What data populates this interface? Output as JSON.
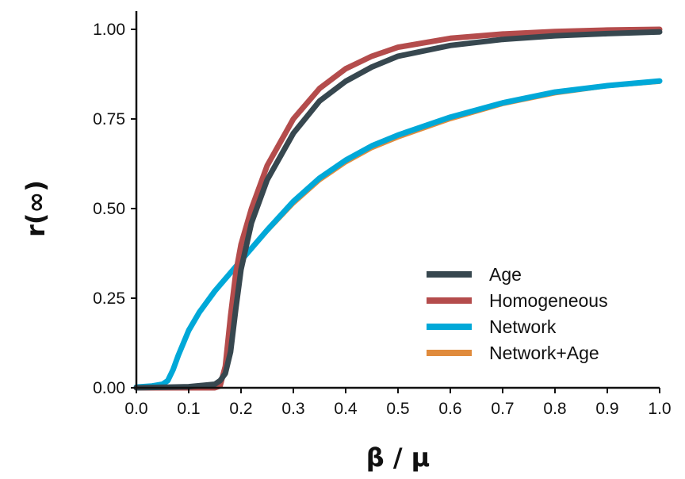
{
  "chart_data": {
    "type": "line",
    "xlabel": "β / μ",
    "ylabel": "r(∞)",
    "xlim": [
      0.0,
      1.0
    ],
    "ylim": [
      0.0,
      1.0
    ],
    "xticks": [
      "0.0",
      "0.1",
      "0.2",
      "0.3",
      "0.4",
      "0.5",
      "0.6",
      "0.7",
      "0.8",
      "0.9",
      "1.0"
    ],
    "yticks": [
      "0.00",
      "0.25",
      "0.50",
      "0.75",
      "1.00"
    ],
    "grid": false,
    "legend_position": "lower-right",
    "series": [
      {
        "name": "Age",
        "color": "#37474f",
        "x": [
          0.0,
          0.1,
          0.15,
          0.16,
          0.17,
          0.18,
          0.19,
          0.2,
          0.22,
          0.25,
          0.3,
          0.35,
          0.4,
          0.45,
          0.5,
          0.6,
          0.7,
          0.8,
          0.9,
          1.0
        ],
        "y": [
          0.0,
          0.003,
          0.01,
          0.02,
          0.04,
          0.1,
          0.22,
          0.33,
          0.46,
          0.58,
          0.71,
          0.8,
          0.855,
          0.895,
          0.925,
          0.955,
          0.972,
          0.982,
          0.988,
          0.993
        ]
      },
      {
        "name": "Homogeneous",
        "color": "#b44c4c",
        "x": [
          0.0,
          0.1,
          0.15,
          0.16,
          0.17,
          0.18,
          0.19,
          0.2,
          0.22,
          0.25,
          0.3,
          0.35,
          0.4,
          0.45,
          0.5,
          0.6,
          0.7,
          0.8,
          0.9,
          1.0
        ],
        "y": [
          0.0,
          0.0,
          0.0,
          0.005,
          0.06,
          0.2,
          0.32,
          0.4,
          0.5,
          0.62,
          0.75,
          0.835,
          0.89,
          0.925,
          0.95,
          0.975,
          0.987,
          0.994,
          0.998,
          1.0
        ]
      },
      {
        "name": "Network",
        "color": "#00a8d8",
        "x": [
          0.0,
          0.03,
          0.05,
          0.06,
          0.07,
          0.08,
          0.1,
          0.12,
          0.15,
          0.2,
          0.25,
          0.3,
          0.35,
          0.4,
          0.45,
          0.5,
          0.6,
          0.7,
          0.8,
          0.9,
          1.0
        ],
        "y": [
          0.002,
          0.005,
          0.01,
          0.02,
          0.05,
          0.09,
          0.16,
          0.21,
          0.27,
          0.355,
          0.44,
          0.52,
          0.585,
          0.635,
          0.675,
          0.705,
          0.755,
          0.795,
          0.825,
          0.843,
          0.856
        ]
      },
      {
        "name": "Network+Age",
        "color": "#e08b3c",
        "x": [
          0.0,
          0.03,
          0.05,
          0.06,
          0.07,
          0.08,
          0.1,
          0.12,
          0.15,
          0.2,
          0.25,
          0.3,
          0.35,
          0.4,
          0.45,
          0.5,
          0.6,
          0.7,
          0.8,
          0.9,
          1.0
        ],
        "y": [
          0.002,
          0.005,
          0.01,
          0.02,
          0.05,
          0.09,
          0.16,
          0.21,
          0.27,
          0.352,
          0.435,
          0.512,
          0.577,
          0.627,
          0.667,
          0.697,
          0.748,
          0.79,
          0.82,
          0.84,
          0.852
        ]
      }
    ]
  }
}
